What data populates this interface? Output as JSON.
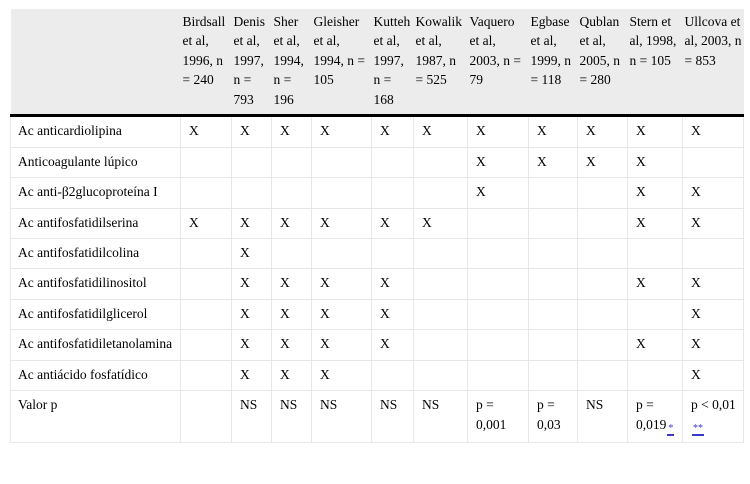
{
  "colors": {
    "header_background": "#ececec",
    "grid_line": "#e7e7e7",
    "header_rule": "#000000",
    "footnote_link": "#3a3ac8"
  },
  "table": {
    "corner_label": "",
    "columns": [
      {
        "label": "Birdsall et al, 1996, n = 240"
      },
      {
        "label": "Denis et al, 1997, n = 793"
      },
      {
        "label": "Sher et al, 1994, n = 196"
      },
      {
        "label": "Gleisher et al, 1994, n = 105"
      },
      {
        "label": "Kutteh et al, 1997, n = 168"
      },
      {
        "label": "Kowalik et al, 1987, n = 525"
      },
      {
        "label": "Vaquero et al, 2003, n = 79"
      },
      {
        "label": "Egbase et al, 1999, n = 118"
      },
      {
        "label": "Qublan et al, 2005, n = 280"
      },
      {
        "label": "Stern et al, 1998, n = 105"
      },
      {
        "label": "Ullcova et al, 2003, n = 853"
      }
    ],
    "rows": [
      {
        "label": "Ac anticardiolipina",
        "cells": [
          "X",
          "X",
          "X",
          "X",
          "X",
          "X",
          "X",
          "X",
          "X",
          "X",
          "X"
        ]
      },
      {
        "label": "Anticoagulante lúpico",
        "cells": [
          "",
          "",
          "",
          "",
          "",
          "",
          "X",
          "X",
          "X",
          "X",
          ""
        ]
      },
      {
        "label": "Ac anti-β2glucoproteína I",
        "cells": [
          "",
          "",
          "",
          "",
          "",
          "",
          "X",
          "",
          "",
          "X",
          "X"
        ]
      },
      {
        "label": "Ac antifosfatidilserina",
        "cells": [
          "X",
          "X",
          "X",
          "X",
          "X",
          "X",
          "",
          "",
          "",
          "X",
          "X"
        ]
      },
      {
        "label": "Ac antifosfatidilcolina",
        "cells": [
          "",
          "X",
          "",
          "",
          "",
          "",
          "",
          "",
          "",
          "",
          ""
        ]
      },
      {
        "label": "Ac antifosfatidilinositol",
        "cells": [
          "",
          "X",
          "X",
          "X",
          "X",
          "",
          "",
          "",
          "",
          "X",
          "X"
        ]
      },
      {
        "label": "Ac antifosfatidilglicerol",
        "cells": [
          "",
          "X",
          "X",
          "X",
          "X",
          "",
          "",
          "",
          "",
          "",
          "X"
        ]
      },
      {
        "label": "Ac antifosfatidiletanolamina",
        "cells": [
          "",
          "X",
          "X",
          "X",
          "X",
          "",
          "",
          "",
          "",
          "X",
          "X"
        ]
      },
      {
        "label": "Ac antiácido fosfatídico",
        "cells": [
          "",
          "X",
          "X",
          "X",
          "",
          "",
          "",
          "",
          "",
          "",
          "X"
        ]
      },
      {
        "label": "Valor p",
        "cells": [
          "",
          "NS",
          "NS",
          "NS",
          "NS",
          "NS",
          "p = 0,001",
          "p = 0,03",
          "NS",
          {
            "text": "p = 0,019",
            "sup": "*"
          },
          {
            "text": "p < 0,01",
            "sup": "**"
          }
        ]
      }
    ]
  }
}
